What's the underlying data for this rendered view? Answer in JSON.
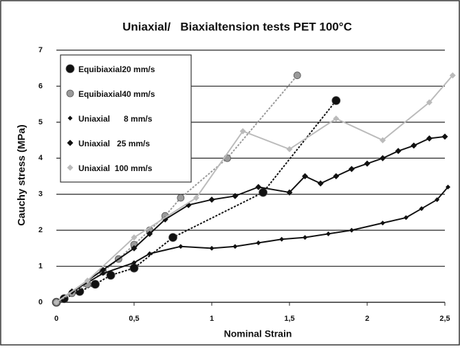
{
  "chart_data": {
    "type": "scatter",
    "title": "Uniaxial/   Biaxialtension tests PET 100°C",
    "x_label": "Nominal Strain",
    "y_label": "Cauchy stress (MPa)",
    "xlim": [
      0,
      2.5
    ],
    "ylim": [
      0,
      7
    ],
    "xticks": [
      0,
      {
        "value": 0.5,
        "label": "0,5"
      },
      1,
      {
        "value": 1.5,
        "label": "1,5"
      },
      2,
      {
        "value": 2.5,
        "label": "2,5"
      }
    ],
    "yticks": [
      0,
      1,
      2,
      3,
      4,
      5,
      6,
      7
    ],
    "grid": true,
    "legend": "upper left",
    "series": [
      {
        "name": "Equibiaxial20 mm/s",
        "color": "#111111",
        "marker": "circle-large",
        "x": [
          0,
          0.05,
          0.15,
          0.25,
          0.35,
          0.5,
          0.75,
          1.33,
          1.8
        ],
        "values": [
          0,
          0.1,
          0.3,
          0.5,
          0.75,
          0.95,
          1.8,
          3.05,
          5.6
        ]
      },
      {
        "name": "Equibiaxial40 mm/s",
        "color": "#9a9a9a",
        "marker": "circle",
        "x": [
          0,
          0.1,
          0.2,
          0.3,
          0.4,
          0.5,
          0.6,
          0.7,
          0.8,
          1.1,
          1.55
        ],
        "values": [
          0,
          0.25,
          0.5,
          0.85,
          1.2,
          1.6,
          2.0,
          2.4,
          2.9,
          4.0,
          6.3
        ]
      },
      {
        "name": "Uniaxial      8 mm/s",
        "color": "#111111",
        "marker": "diamond-small",
        "x": [
          0,
          0.1,
          0.3,
          0.5,
          0.6,
          0.8,
          1.0,
          1.15,
          1.3,
          1.45,
          1.6,
          1.75,
          1.9,
          2.1,
          2.25,
          2.35,
          2.45,
          2.52
        ],
        "values": [
          0,
          0.3,
          0.8,
          1.1,
          1.35,
          1.55,
          1.5,
          1.55,
          1.65,
          1.75,
          1.8,
          1.9,
          2.0,
          2.2,
          2.35,
          2.6,
          2.85,
          3.2
        ]
      },
      {
        "name": "Uniaxial   25 mm/s",
        "color": "#111111",
        "marker": "diamond",
        "x": [
          0,
          0.1,
          0.3,
          0.5,
          0.6,
          0.7,
          0.85,
          1.0,
          1.15,
          1.3,
          1.5,
          1.6,
          1.7,
          1.8,
          1.9,
          2.0,
          2.1,
          2.2,
          2.3,
          2.4,
          2.5
        ],
        "values": [
          0,
          0.3,
          0.9,
          1.5,
          1.9,
          2.3,
          2.7,
          2.85,
          2.95,
          3.2,
          3.05,
          3.5,
          3.3,
          3.5,
          3.7,
          3.85,
          4.0,
          4.2,
          4.35,
          4.55,
          4.6
        ]
      },
      {
        "name": "Uniaxial  100 mm/s",
        "color": "#bbbbbb",
        "marker": "diamond",
        "x": [
          0,
          0.2,
          0.5,
          0.9,
          1.2,
          1.5,
          1.8,
          2.1,
          2.4,
          2.55
        ],
        "values": [
          0,
          0.6,
          1.8,
          2.9,
          4.75,
          4.25,
          5.1,
          4.5,
          5.55,
          6.3
        ]
      }
    ]
  }
}
